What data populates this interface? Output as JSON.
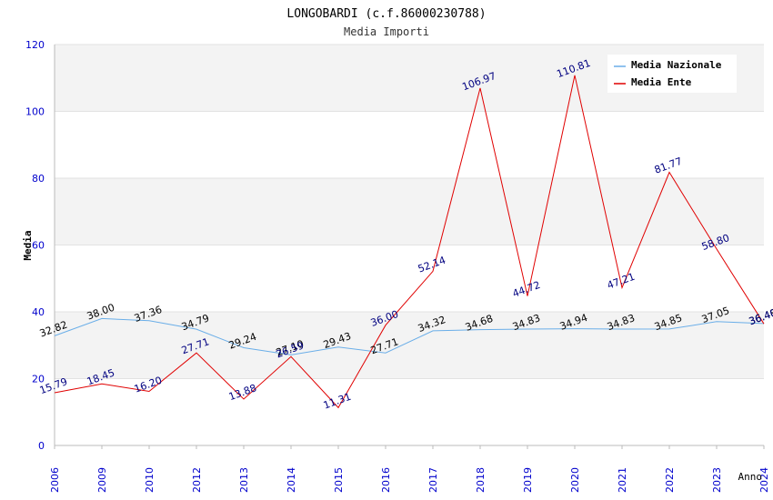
{
  "chart_data": {
    "type": "line",
    "title": "LONGOBARDI (c.f.86000230788)",
    "subtitle": "Media Importi",
    "xlabel": "Anno",
    "ylabel": "Media",
    "ylim": [
      0,
      120
    ],
    "yticks": [
      "0",
      "20",
      "40",
      "60",
      "80",
      "100",
      "120"
    ],
    "categories": [
      "2006",
      "2009",
      "2010",
      "2012",
      "2013",
      "2014",
      "2015",
      "2016",
      "2017",
      "2018",
      "2019",
      "2020",
      "2021",
      "2022",
      "2023",
      "2024"
    ],
    "series": [
      {
        "name": "Media Nazionale",
        "color": "#6aaee8",
        "label_color": "#000000",
        "values": [
          32.82,
          38.0,
          37.36,
          34.79,
          29.24,
          27.1,
          29.43,
          27.71,
          34.32,
          34.68,
          34.83,
          34.94,
          34.83,
          34.85,
          37.05,
          36.48
        ],
        "labels": [
          "32.82",
          "38.00",
          "37.36",
          "34.79",
          "29.24",
          "27.10",
          "29.43",
          "27.71",
          "34.32",
          "34.68",
          "34.83",
          "34.94",
          "34.83",
          "34.85",
          "37.05",
          "36.48"
        ]
      },
      {
        "name": "Media Ente",
        "color": "#e00000",
        "label_color": "#000080",
        "values": [
          15.79,
          18.45,
          16.2,
          27.71,
          13.88,
          26.59,
          11.31,
          36.0,
          52.14,
          106.97,
          44.72,
          110.81,
          47.21,
          81.77,
          58.8,
          36.4
        ],
        "labels": [
          "15.79",
          "18.45",
          "16.20",
          "27.71",
          "13.88",
          "26.59",
          "11.31",
          "36.00",
          "52.14",
          "106.97",
          "44.72",
          "110.81",
          "47.21",
          "81.77",
          "58.80",
          "36.40"
        ]
      }
    ],
    "legend_position": "top-right",
    "grid": true
  }
}
